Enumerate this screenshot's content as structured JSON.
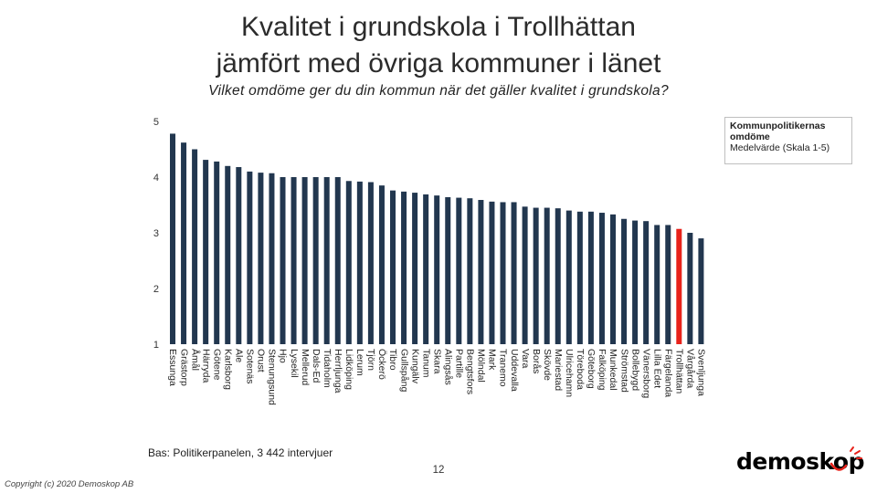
{
  "title_line1": "Kvalitet i grundskola i Trollhättan",
  "title_line2": "jämfört med övriga kommuner i länet",
  "subtitle": "Vilket omdöme ger du din kommun när det gäller kvalitet i grundskola?",
  "legend": {
    "title_line1": "Kommunpolitikernas",
    "title_line2": "omdöme",
    "note": "Medelvärde (Skala 1-5)"
  },
  "footer": {
    "base_note": "Bas: Politikerpanelen, 3 442 intervjuer",
    "page_number": "12",
    "copyright": "Copyright (c) 2020 Demoskop AB",
    "logo_text": "demoskop"
  },
  "colors": {
    "bar": "#22374f",
    "highlight": "#e8221b",
    "grid": "#d9d9d9"
  },
  "chart_data": {
    "type": "bar",
    "ylim": [
      1,
      5
    ],
    "yticks": [
      1,
      2,
      3,
      4,
      5
    ],
    "grid": true,
    "legend_position": "top-right",
    "highlight": "Trollhättan",
    "categories": [
      "Essunga",
      "Grästorp",
      "Åmål",
      "Härryda",
      "Götene",
      "Karlsborg",
      "Ale",
      "Sotenäs",
      "Orust",
      "Stenungsund",
      "Hjo",
      "Lysekil",
      "Mellerud",
      "Dals-Ed",
      "Tidaholm",
      "Herrljunga",
      "Lidköping",
      "Lerum",
      "Tjörn",
      "Öckerö",
      "Tibro",
      "Gullspång",
      "Kungälv",
      "Tanum",
      "Skara",
      "Alingsås",
      "Partille",
      "Bengtsfors",
      "Mölndal",
      "Mark",
      "Tranemo",
      "Uddevalla",
      "Vara",
      "Borås",
      "Skövde",
      "Mariestad",
      "Ulricehamn",
      "Töreboda",
      "Göteborg",
      "Falköping",
      "Munkedal",
      "Strömstad",
      "Bollebygd",
      "Vänersborg",
      "Lilla Edet",
      "Färgelanda",
      "Trollhättan",
      "Vårgårda",
      "Svenljunga"
    ],
    "values": [
      4.78,
      4.62,
      4.5,
      4.31,
      4.28,
      4.2,
      4.18,
      4.1,
      4.08,
      4.07,
      4.0,
      4.0,
      4.0,
      4.0,
      4.0,
      4.0,
      3.93,
      3.92,
      3.91,
      3.85,
      3.76,
      3.74,
      3.72,
      3.69,
      3.67,
      3.64,
      3.63,
      3.62,
      3.59,
      3.56,
      3.55,
      3.55,
      3.47,
      3.45,
      3.45,
      3.44,
      3.4,
      3.38,
      3.38,
      3.36,
      3.33,
      3.25,
      3.22,
      3.21,
      3.14,
      3.14,
      3.07,
      3.0,
      2.9
    ]
  }
}
